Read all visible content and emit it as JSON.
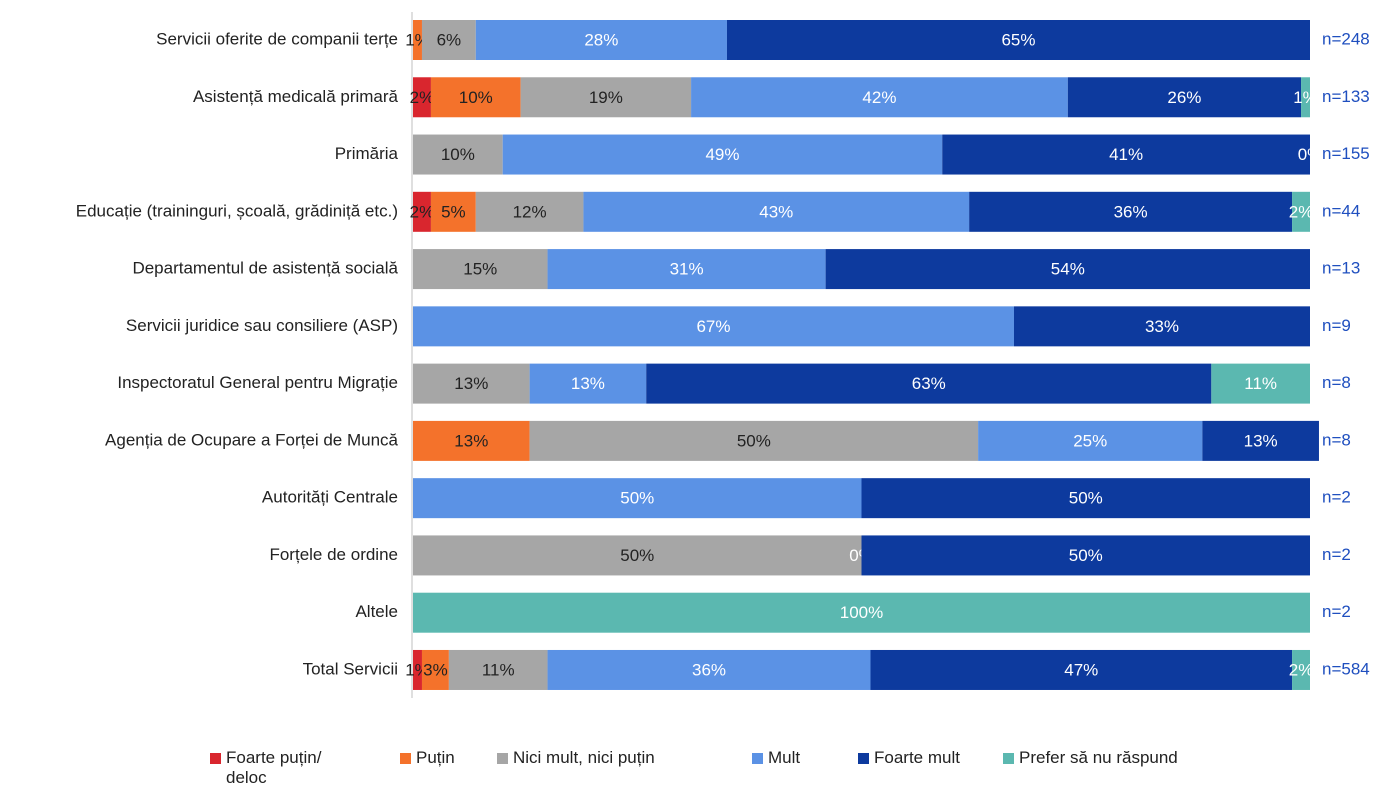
{
  "chart_data": {
    "type": "bar_stacked_horizontal",
    "categories": [
      "Servicii oferite de companii terțe",
      "Asistență medicală primară",
      "Primăria",
      "Educație (traininguri, școală, grădiniță etc.)",
      "Departamentul de asistență socială",
      "Servicii juridice sau consiliere (ASP)",
      "Inspectoratul General pentru Migrație",
      "Agenția de Ocupare a Forței de Muncă",
      "Autorități Centrale",
      "Forțele de ordine",
      "Altele",
      "Total Servicii"
    ],
    "sample_sizes": [
      "n=248",
      "n=133",
      "n=155",
      "n=44",
      "n=13",
      "n=9",
      "n=8",
      "n=8",
      "n=2",
      "n=2",
      "n=2",
      "n=584"
    ],
    "xlim": [
      0,
      100
    ],
    "series": [
      {
        "name": "Foarte puțin/ deloc",
        "color": "#d9262e",
        "label_color": "#222222",
        "values": [
          null,
          2,
          null,
          2,
          null,
          null,
          null,
          null,
          null,
          null,
          null,
          1
        ],
        "value_labels": [
          null,
          "2%",
          null,
          "2%",
          null,
          null,
          null,
          null,
          null,
          null,
          null,
          "1%"
        ]
      },
      {
        "name": "Puțin",
        "color": "#f4722b",
        "label_color": "#222222",
        "values": [
          1,
          10,
          null,
          5,
          null,
          null,
          null,
          13,
          null,
          null,
          null,
          3
        ],
        "value_labels": [
          "1%",
          "10%",
          null,
          "5%",
          null,
          null,
          null,
          "13%",
          null,
          null,
          null,
          "3%"
        ]
      },
      {
        "name": "Nici mult, nici puțin",
        "color": "#a6a6a6",
        "label_color": "#222222",
        "values": [
          6,
          19,
          10,
          12,
          15,
          null,
          13,
          50,
          null,
          50,
          null,
          11
        ],
        "value_labels": [
          "6%",
          "19%",
          "10%",
          "12%",
          "15%",
          null,
          "13%",
          "50%",
          null,
          "50%",
          null,
          "11%"
        ]
      },
      {
        "name": "Mult",
        "color": "#5b92e5",
        "label_color": "#ffffff",
        "values": [
          28,
          42,
          49,
          43,
          31,
          67,
          13,
          25,
          50,
          0,
          null,
          36
        ],
        "value_labels": [
          "28%",
          "42%",
          "49%",
          "43%",
          "31%",
          "67%",
          "13%",
          "25%",
          "50%",
          "0%",
          null,
          "36%"
        ]
      },
      {
        "name": "Foarte mult",
        "color": "#0d3a9e",
        "label_color": "#ffffff",
        "values": [
          65,
          26,
          41,
          36,
          54,
          33,
          63,
          13,
          50,
          50,
          null,
          47
        ],
        "value_labels": [
          "65%",
          "26%",
          "41%",
          "36%",
          "54%",
          "33%",
          "63%",
          "13%",
          "50%",
          "50%",
          null,
          "47%"
        ]
      },
      {
        "name": "Prefer să nu răspund",
        "color": "#5bb8b0",
        "label_color": "#ffffff",
        "values": [
          null,
          1,
          0,
          2,
          null,
          null,
          11,
          null,
          null,
          null,
          100,
          2
        ],
        "value_labels": [
          null,
          "1%",
          "0%",
          "2%",
          null,
          null,
          "11%",
          null,
          null,
          null,
          "100%",
          "2%"
        ]
      }
    ]
  }
}
